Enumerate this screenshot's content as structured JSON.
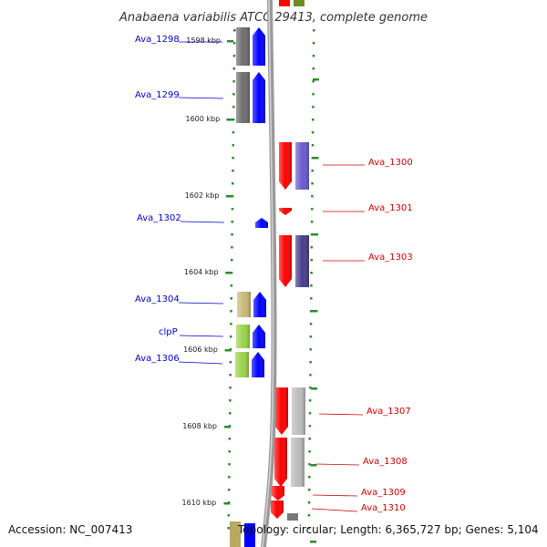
{
  "title": "Anabaena variabilis ATCC 29413, complete genome",
  "footer": {
    "accession_label": "Accession:",
    "accession": "NC_007413",
    "topology_text": "Topology: circular; Length: 6,365,727 bp; Genes: 5,104"
  },
  "ruler": [
    {
      "label": "1598 kbp"
    },
    {
      "label": "1600 kbp"
    },
    {
      "label": "1602 kbp"
    },
    {
      "label": "1604 kbp"
    },
    {
      "label": "1606 kbp"
    },
    {
      "label": "1608 kbp"
    },
    {
      "label": "1610 kbp"
    }
  ],
  "genes": [
    {
      "name": "Ava_1298",
      "strand": "minus",
      "color": "#0000ff",
      "feature_color": "#6e6e6e"
    },
    {
      "name": "Ava_1299",
      "strand": "minus",
      "color": "#0000ff",
      "feature_color": "#6e6e6e"
    },
    {
      "name": "Ava_1300",
      "strand": "plus",
      "color": "#ff0000",
      "feature_color": "#6a5acd"
    },
    {
      "name": "Ava_1301",
      "strand": "plus",
      "color": "#ff0000",
      "feature_color": ""
    },
    {
      "name": "Ava_1302",
      "strand": "minus",
      "color": "#0000ff",
      "feature_color": ""
    },
    {
      "name": "Ava_1303",
      "strand": "plus",
      "color": "#ff0000",
      "feature_color": "#483d8b"
    },
    {
      "name": "Ava_1304",
      "strand": "minus",
      "color": "#0000ff",
      "feature_color": "#c8b878"
    },
    {
      "name": "clpP",
      "strand": "minus",
      "color": "#0000ff",
      "feature_color": "#9ad34a"
    },
    {
      "name": "Ava_1306",
      "strand": "minus",
      "color": "#0000ff",
      "feature_color": "#9ad34a"
    },
    {
      "name": "Ava_1307",
      "strand": "plus",
      "color": "#ff0000",
      "feature_color": "#bbbbbb"
    },
    {
      "name": "Ava_1308",
      "strand": "plus",
      "color": "#ff0000",
      "feature_color": "#bbbbbb"
    },
    {
      "name": "Ava_1309",
      "strand": "plus",
      "color": "#ff0000",
      "feature_color": ""
    },
    {
      "name": "Ava_1310",
      "strand": "plus",
      "color": "#ff0000",
      "feature_color": ""
    }
  ]
}
